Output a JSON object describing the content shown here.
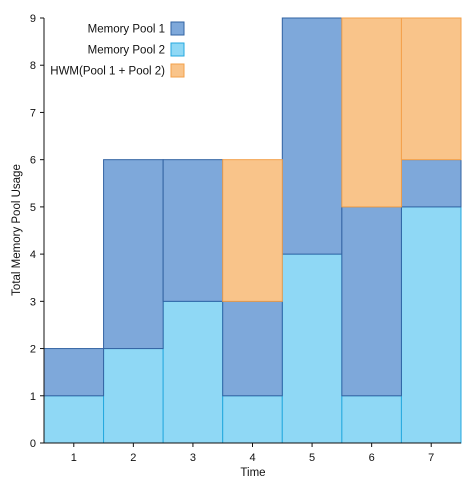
{
  "chart_data": {
    "type": "bar",
    "stacked": true,
    "xlabel": "Time",
    "ylabel": "Total Memory Pool Usage",
    "categories": [
      "1",
      "2",
      "3",
      "4",
      "5",
      "6",
      "7"
    ],
    "ylim": [
      0,
      9
    ],
    "yticks": [
      "0",
      "1",
      "2",
      "3",
      "4",
      "5",
      "6",
      "7",
      "8",
      "9"
    ],
    "grid": false,
    "legend_position": "top-right",
    "series": [
      {
        "name": "Memory Pool 2",
        "values": [
          1,
          2,
          3,
          1,
          4,
          1,
          5
        ],
        "color": "#8fd8f5",
        "edge": "#26a9df"
      },
      {
        "name": "Memory Pool 1",
        "values": [
          1,
          4,
          3,
          2,
          5,
          4,
          1
        ],
        "color": "#7ea8da",
        "edge": "#3263a3"
      },
      {
        "name": "HWM(Pool 1 + Pool 2)",
        "values": [
          0,
          0,
          0,
          3,
          0,
          4,
          3
        ],
        "color": "#f9c48a",
        "edge": "#f3a049"
      }
    ],
    "legend": [
      "Memory Pool 1",
      "Memory Pool 2",
      "HWM(Pool 1 + Pool 2)"
    ]
  }
}
